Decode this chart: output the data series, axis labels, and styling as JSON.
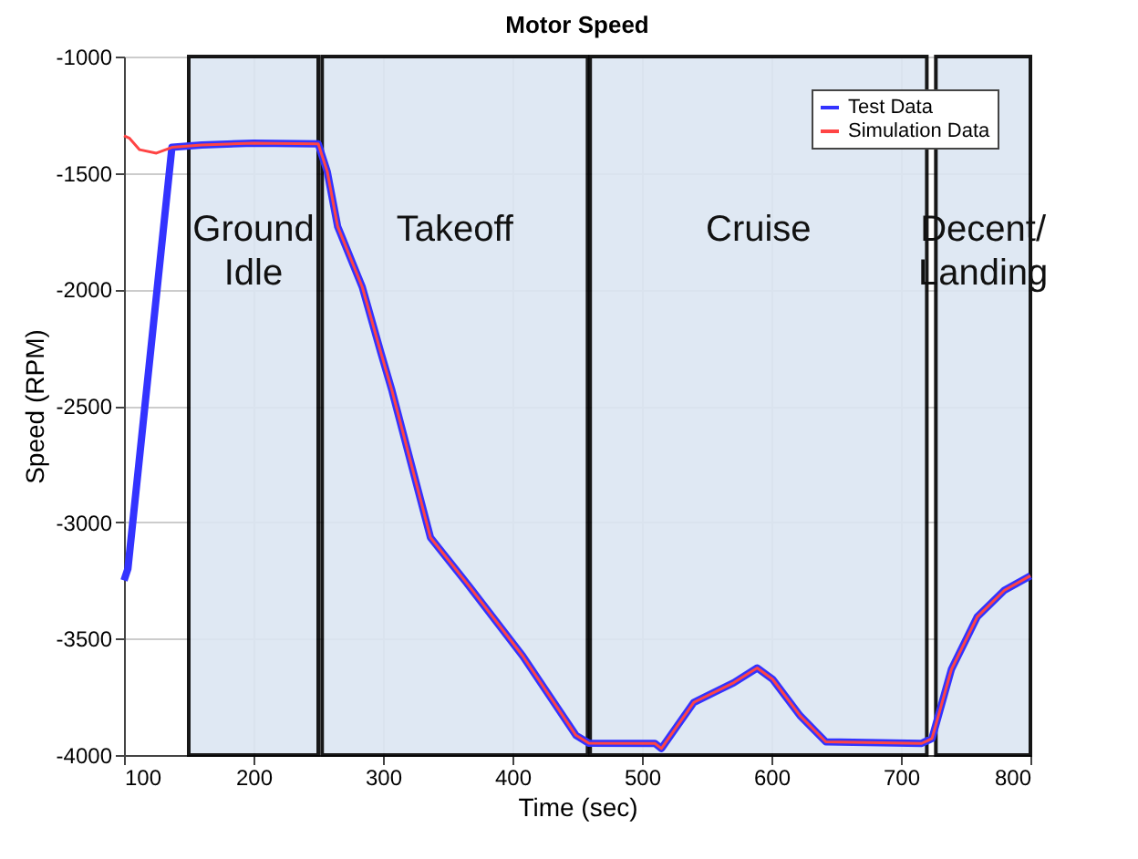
{
  "chart_data": {
    "type": "line",
    "title": "Motor Speed",
    "xlabel": "Time (sec)",
    "ylabel": "Speed (RPM)",
    "series": [
      {
        "name": "Test Data",
        "color": "#3333ff",
        "x": [
          100,
          103,
          137,
          160,
          200,
          250,
          257,
          265,
          284,
          298.5,
          307,
          336.7,
          367,
          408,
          449,
          459,
          510,
          515,
          540,
          571,
          589,
          601,
          622,
          642,
          716,
          724,
          739,
          759,
          780,
          800
        ],
        "values": [
          -3250,
          -3200,
          -1390,
          -1380,
          -1372,
          -1375,
          -1495,
          -1730,
          -1990,
          -2274,
          -2436,
          -3066,
          -3278,
          -3575,
          -3915,
          -3949,
          -3950,
          -3972,
          -3774,
          -3689,
          -3626,
          -3675,
          -3830,
          -3943,
          -3950,
          -3929,
          -3632,
          -3406,
          -3292,
          -3230
        ]
      },
      {
        "name": "Simulation Data",
        "color": "#ff4444",
        "x": [
          100,
          104,
          112,
          125,
          137,
          160,
          200,
          250,
          257,
          265,
          284,
          298.5,
          307,
          336.7,
          367,
          408,
          449,
          459,
          510,
          515,
          540,
          571,
          589,
          601,
          622,
          642,
          716,
          724,
          739,
          759,
          780,
          800
        ],
        "values": [
          -1340,
          -1350,
          -1400,
          -1415,
          -1390,
          -1380,
          -1372,
          -1375,
          -1495,
          -1730,
          -1990,
          -2274,
          -2436,
          -3066,
          -3278,
          -3575,
          -3915,
          -3949,
          -3950,
          -3972,
          -3774,
          -3689,
          -3626,
          -3675,
          -3830,
          -3943,
          -3950,
          -3929,
          -3632,
          -3406,
          -3292,
          -3230
        ]
      }
    ],
    "xlim": [
      100,
      800
    ],
    "xticks": [
      100,
      200,
      300,
      400,
      500,
      600,
      700,
      800
    ],
    "ylim": [
      -4000,
      -1000
    ],
    "yticks": [
      -4000,
      -3500,
      -3000,
      -2500,
      -2000,
      -1500,
      -1000
    ],
    "bands": [
      {
        "axis": "x",
        "from": 150,
        "to": 250,
        "label": "Ground Idle",
        "color": "#dce6f2"
      },
      {
        "axis": "x",
        "from": 253,
        "to": 458,
        "label": "Takeoff",
        "color": "#dce6f2"
      },
      {
        "axis": "x",
        "from": 460,
        "to": 720,
        "label": "Cruise",
        "color": "#dce6f2"
      },
      {
        "axis": "x",
        "from": 727,
        "to": 800,
        "label": "Decent/ Landing",
        "color": "#dce6f2"
      }
    ],
    "grid": true,
    "legend": "top right",
    "line_style": "solid"
  }
}
